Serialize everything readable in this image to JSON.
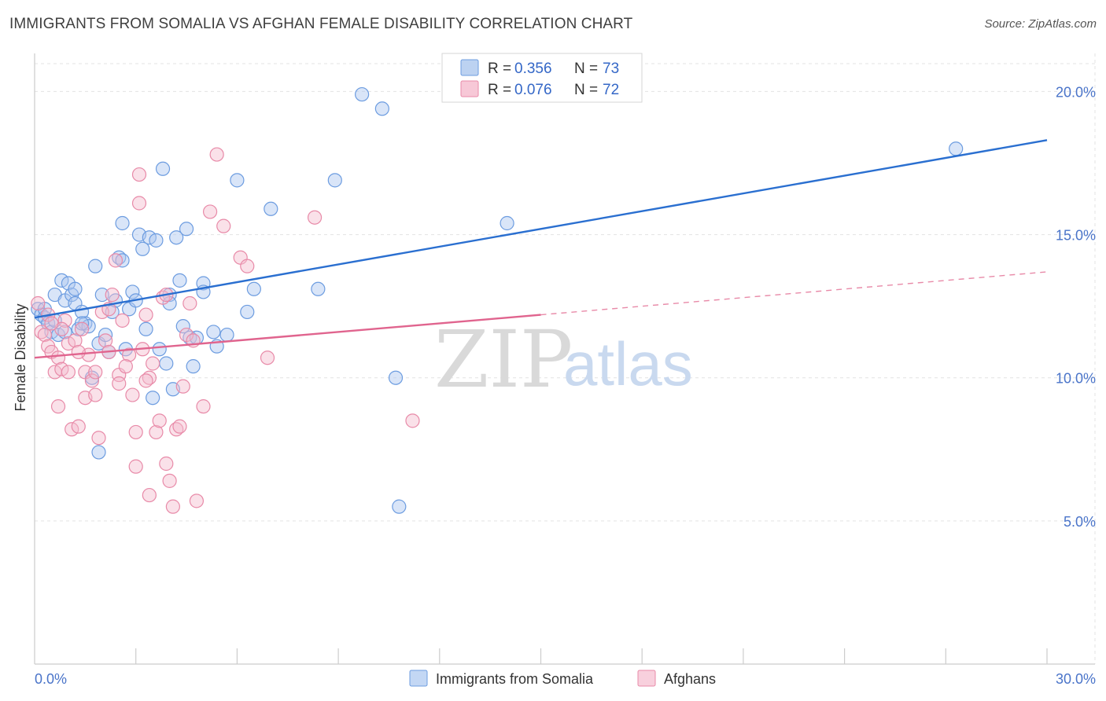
{
  "title": "IMMIGRANTS FROM SOMALIA VS AFGHAN FEMALE DISABILITY CORRELATION CHART",
  "source": "Source: ZipAtlas.com",
  "watermark": {
    "zip": "ZIP",
    "atlas": "atlas"
  },
  "legend_top": [
    {
      "r_label": "R = ",
      "r_value": "0.356",
      "n_label": "N = ",
      "n_value": "73",
      "color": "#8fb4e8"
    },
    {
      "r_label": "R = ",
      "r_value": "0.076",
      "n_label": "N = ",
      "n_value": "72",
      "color": "#f2a3bd"
    }
  ],
  "chart_data": {
    "type": "scatter",
    "ylabel": "Female Disability",
    "xlim": [
      0,
      30
    ],
    "ylim": [
      0,
      21
    ],
    "x_tick_labels": [
      {
        "value": 0,
        "label": "0.0%"
      },
      {
        "value": 30,
        "label": "30.0%"
      }
    ],
    "x_minor_ticks": [
      3,
      6,
      9,
      12,
      15,
      18,
      21,
      24,
      27,
      30
    ],
    "y_ticks": [
      {
        "value": 5,
        "label": "5.0%"
      },
      {
        "value": 10,
        "label": "10.0%"
      },
      {
        "value": 15,
        "label": "15.0%"
      },
      {
        "value": 20,
        "label": "20.0%"
      }
    ],
    "grid": "horizontal dashed",
    "legend_position": "bottom-center",
    "series": [
      {
        "name": "Immigrants from Somalia",
        "color": "#6c9ce0",
        "fill": "#aac6f0",
        "trend": {
          "x0": 0,
          "y0": 12.1,
          "x1": 30,
          "y1": 18.3,
          "style": "solid"
        },
        "points": [
          [
            0.1,
            12.4
          ],
          [
            0.2,
            12.2
          ],
          [
            0.3,
            12.1
          ],
          [
            0.4,
            11.9
          ],
          [
            0.5,
            11.6
          ],
          [
            0.6,
            12.0
          ],
          [
            0.7,
            11.5
          ],
          [
            0.6,
            12.9
          ],
          [
            0.8,
            13.4
          ],
          [
            0.9,
            12.7
          ],
          [
            1.0,
            13.3
          ],
          [
            1.1,
            12.9
          ],
          [
            1.2,
            12.6
          ],
          [
            1.3,
            11.7
          ],
          [
            1.2,
            13.1
          ],
          [
            1.4,
            12.3
          ],
          [
            1.5,
            11.9
          ],
          [
            1.6,
            11.8
          ],
          [
            1.7,
            10.0
          ],
          [
            1.8,
            13.9
          ],
          [
            1.9,
            7.4
          ],
          [
            1.9,
            11.2
          ],
          [
            2.0,
            12.9
          ],
          [
            2.1,
            11.5
          ],
          [
            2.2,
            10.9
          ],
          [
            2.3,
            12.3
          ],
          [
            2.4,
            12.7
          ],
          [
            2.5,
            14.2
          ],
          [
            2.6,
            14.1
          ],
          [
            2.6,
            15.4
          ],
          [
            2.7,
            11.0
          ],
          [
            2.8,
            12.4
          ],
          [
            2.9,
            13.0
          ],
          [
            3.0,
            12.7
          ],
          [
            3.1,
            15.0
          ],
          [
            3.2,
            14.5
          ],
          [
            3.3,
            11.7
          ],
          [
            3.4,
            14.9
          ],
          [
            3.5,
            9.3
          ],
          [
            3.6,
            14.8
          ],
          [
            3.7,
            11.0
          ],
          [
            3.8,
            17.3
          ],
          [
            3.9,
            10.5
          ],
          [
            4.0,
            12.9
          ],
          [
            4.0,
            12.6
          ],
          [
            4.1,
            9.6
          ],
          [
            4.2,
            14.9
          ],
          [
            4.3,
            13.4
          ],
          [
            4.4,
            11.8
          ],
          [
            4.5,
            15.2
          ],
          [
            4.6,
            11.4
          ],
          [
            4.7,
            10.4
          ],
          [
            4.8,
            11.4
          ],
          [
            5.0,
            13.3
          ],
          [
            5.0,
            13.0
          ],
          [
            5.3,
            11.6
          ],
          [
            5.4,
            11.1
          ],
          [
            5.7,
            11.5
          ],
          [
            6.0,
            16.9
          ],
          [
            6.3,
            12.3
          ],
          [
            6.5,
            13.1
          ],
          [
            7.0,
            15.9
          ],
          [
            8.4,
            13.1
          ],
          [
            8.9,
            16.9
          ],
          [
            9.7,
            19.9
          ],
          [
            10.3,
            19.4
          ],
          [
            10.7,
            10.0
          ],
          [
            10.8,
            5.5
          ],
          [
            14.0,
            15.4
          ],
          [
            27.3,
            18.0
          ],
          [
            0.3,
            12.4
          ],
          [
            0.9,
            11.6
          ],
          [
            1.4,
            11.9
          ]
        ]
      },
      {
        "name": "Afghans",
        "color": "#e88aa8",
        "fill": "#f5bccf",
        "trend": {
          "x0": 0,
          "y0": 10.7,
          "x1": 15,
          "y1": 12.2,
          "style": "solid",
          "dash_x1": 30,
          "dash_y1": 13.7
        },
        "points": [
          [
            0.1,
            12.6
          ],
          [
            0.2,
            11.6
          ],
          [
            0.3,
            11.5
          ],
          [
            0.4,
            11.1
          ],
          [
            0.5,
            10.9
          ],
          [
            0.6,
            10.2
          ],
          [
            0.7,
            9.0
          ],
          [
            0.7,
            10.7
          ],
          [
            0.8,
            10.3
          ],
          [
            0.9,
            12.0
          ],
          [
            1.0,
            11.2
          ],
          [
            1.0,
            10.2
          ],
          [
            1.1,
            8.2
          ],
          [
            1.2,
            11.3
          ],
          [
            1.3,
            8.3
          ],
          [
            1.4,
            11.7
          ],
          [
            1.5,
            9.3
          ],
          [
            1.5,
            10.2
          ],
          [
            1.6,
            10.8
          ],
          [
            1.7,
            9.9
          ],
          [
            1.8,
            10.2
          ],
          [
            1.8,
            9.4
          ],
          [
            1.9,
            7.9
          ],
          [
            2.0,
            12.3
          ],
          [
            2.1,
            11.3
          ],
          [
            2.2,
            12.4
          ],
          [
            2.2,
            10.9
          ],
          [
            2.3,
            12.9
          ],
          [
            2.4,
            14.1
          ],
          [
            2.5,
            10.1
          ],
          [
            2.5,
            9.8
          ],
          [
            2.6,
            12.0
          ],
          [
            2.8,
            10.8
          ],
          [
            2.9,
            9.4
          ],
          [
            3.0,
            8.1
          ],
          [
            3.0,
            6.9
          ],
          [
            3.1,
            17.1
          ],
          [
            3.1,
            16.1
          ],
          [
            3.2,
            11.0
          ],
          [
            3.3,
            12.2
          ],
          [
            3.4,
            5.9
          ],
          [
            3.4,
            10.0
          ],
          [
            3.5,
            10.5
          ],
          [
            3.6,
            8.1
          ],
          [
            3.7,
            8.5
          ],
          [
            3.8,
            12.8
          ],
          [
            3.9,
            12.9
          ],
          [
            3.9,
            7.0
          ],
          [
            4.0,
            6.4
          ],
          [
            4.1,
            5.5
          ],
          [
            4.2,
            8.2
          ],
          [
            4.3,
            8.3
          ],
          [
            4.4,
            9.7
          ],
          [
            4.5,
            11.5
          ],
          [
            4.6,
            12.6
          ],
          [
            4.8,
            5.7
          ],
          [
            5.0,
            9.0
          ],
          [
            5.2,
            15.8
          ],
          [
            5.4,
            17.8
          ],
          [
            5.6,
            15.3
          ],
          [
            6.1,
            14.2
          ],
          [
            6.3,
            13.9
          ],
          [
            6.9,
            10.7
          ],
          [
            8.3,
            15.6
          ],
          [
            11.2,
            8.5
          ],
          [
            0.4,
            12.2
          ],
          [
            0.8,
            11.7
          ],
          [
            1.3,
            10.9
          ],
          [
            2.7,
            10.4
          ],
          [
            3.3,
            9.9
          ],
          [
            4.7,
            11.3
          ],
          [
            0.5,
            11.9
          ]
        ]
      }
    ]
  }
}
